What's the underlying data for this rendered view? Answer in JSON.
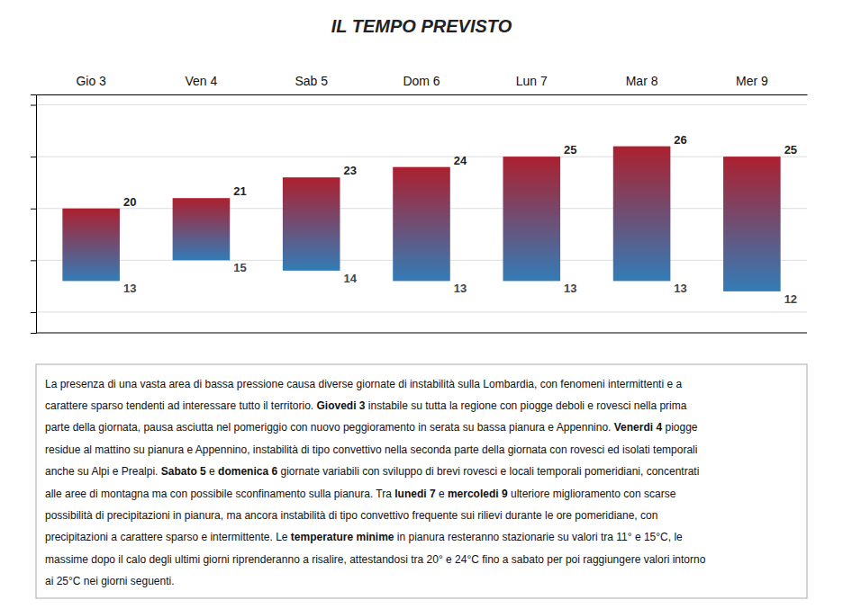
{
  "chart_data": {
    "type": "range_bar",
    "title": "IL TEMPO PREVISTO",
    "categories": [
      "Gio 3",
      "Ven 4",
      "Sab 5",
      "Dom 6",
      "Lun 7",
      "Mar 8",
      "Mer 9"
    ],
    "values": [
      20,
      21,
      23,
      24,
      25,
      26,
      25
    ],
    "low": [
      13,
      15,
      14,
      13,
      13,
      13,
      12
    ],
    "ylim": [
      8,
      31
    ],
    "yticks": [
      10,
      15,
      20,
      25,
      30
    ],
    "grid": true,
    "tick_labels": "x",
    "data_labels": true,
    "annotations": [
      [
        "La presenza di una vasta area di bassa pressione causa diverse giornate di instabilità sulla Lombardia, con fenomeni intermittenti e a"
      ],
      [
        "carattere sparso tendenti ad interessare tutto il territorio. ",
        "Giovedi 3",
        " instabile su tutta la regione con piogge deboli e rovesci nella prima"
      ],
      [
        "parte della giornata, pausa asciutta nel pomeriggio con nuovo peggioramento in serata su bassa pianura e Appennino. ",
        "Venerdi 4",
        " piogge"
      ],
      [
        "residue al mattino su pianura e Appennino, instabilità di tipo convettivo nella seconda parte della giornata con rovesci ed isolati temporali"
      ],
      [
        "anche su Alpi e Prealpi. ",
        "Sabato 5",
        " e ",
        "domenica 6",
        " giornate variabili con sviluppo di brevi rovesci e locali temporali pomeridiani, concentrati"
      ],
      [
        "alle aree di montagna ma con possibile sconfinamento sulla pianura. Tra ",
        "lunedi 7",
        " e ",
        "mercoledi 9",
        " ulteriore miglioramento con scarse"
      ],
      [
        "possibilità di precipitazioni in pianura, ma ancora instabilità di tipo convettivo frequente sui rilievi durante le ore pomeridiane, con"
      ],
      [
        "precipitazioni a carattere sparso e intermittente. Le ",
        "temperature minime",
        " in pianura resteranno stazionarie su valori tra 11° e 15°C, le"
      ],
      [
        "massime dopo il calo degli ultimi giorni riprenderanno a risalire, attestandosi tra 20° e 24°C fino a sabato per poi raggiungere valori intorno"
      ],
      [
        "ai 25°C nei giorni seguenti."
      ]
    ]
  }
}
